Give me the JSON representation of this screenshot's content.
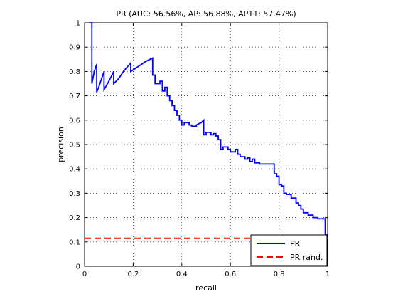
{
  "chart_data": {
    "type": "line",
    "title": "PR (AUC: 56.56%, AP: 56.88%, AP11: 57.47%)",
    "xlabel": "recall",
    "ylabel": "precision",
    "xlim": [
      0,
      1
    ],
    "ylim": [
      0,
      1
    ],
    "x_ticks": [
      "0",
      "0.2",
      "0.4",
      "0.6",
      "0.8",
      "1"
    ],
    "y_ticks": [
      "0",
      "0.1",
      "0.2",
      "0.3",
      "0.4",
      "0.5",
      "0.6",
      "0.7",
      "0.8",
      "0.9",
      "1"
    ],
    "grid": true,
    "legend_position": "bottom-right",
    "series": [
      {
        "name": "PR",
        "color": "#0000ff",
        "style": "solid",
        "step": true,
        "points": [
          [
            0.02,
            1.0
          ],
          [
            0.03,
            1.0
          ],
          [
            0.03,
            0.75
          ],
          [
            0.04,
            0.8
          ],
          [
            0.05,
            0.83
          ],
          [
            0.05,
            0.715
          ],
          [
            0.06,
            0.74
          ],
          [
            0.07,
            0.77
          ],
          [
            0.08,
            0.8
          ],
          [
            0.08,
            0.725
          ],
          [
            0.1,
            0.76
          ],
          [
            0.12,
            0.8
          ],
          [
            0.12,
            0.75
          ],
          [
            0.14,
            0.77
          ],
          [
            0.16,
            0.8
          ],
          [
            0.19,
            0.835
          ],
          [
            0.19,
            0.8
          ],
          [
            0.22,
            0.82
          ],
          [
            0.25,
            0.84
          ],
          [
            0.28,
            0.855
          ],
          [
            0.28,
            0.785
          ],
          [
            0.29,
            0.785
          ],
          [
            0.29,
            0.75
          ],
          [
            0.31,
            0.75
          ],
          [
            0.31,
            0.76
          ],
          [
            0.32,
            0.76
          ],
          [
            0.32,
            0.72
          ],
          [
            0.33,
            0.72
          ],
          [
            0.33,
            0.735
          ],
          [
            0.34,
            0.735
          ],
          [
            0.34,
            0.7
          ],
          [
            0.35,
            0.7
          ],
          [
            0.35,
            0.68
          ],
          [
            0.36,
            0.68
          ],
          [
            0.36,
            0.66
          ],
          [
            0.37,
            0.66
          ],
          [
            0.37,
            0.64
          ],
          [
            0.38,
            0.64
          ],
          [
            0.38,
            0.62
          ],
          [
            0.39,
            0.62
          ],
          [
            0.39,
            0.6
          ],
          [
            0.4,
            0.6
          ],
          [
            0.4,
            0.58
          ],
          [
            0.41,
            0.58
          ],
          [
            0.41,
            0.59
          ],
          [
            0.43,
            0.59
          ],
          [
            0.43,
            0.58
          ],
          [
            0.44,
            0.58
          ],
          [
            0.44,
            0.575
          ],
          [
            0.46,
            0.575
          ],
          [
            0.46,
            0.58
          ],
          [
            0.48,
            0.59
          ],
          [
            0.49,
            0.6
          ],
          [
            0.49,
            0.54
          ],
          [
            0.5,
            0.54
          ],
          [
            0.5,
            0.55
          ],
          [
            0.52,
            0.55
          ],
          [
            0.52,
            0.54
          ],
          [
            0.53,
            0.54
          ],
          [
            0.53,
            0.545
          ],
          [
            0.54,
            0.545
          ],
          [
            0.54,
            0.535
          ],
          [
            0.55,
            0.535
          ],
          [
            0.55,
            0.52
          ],
          [
            0.56,
            0.52
          ],
          [
            0.56,
            0.48
          ],
          [
            0.57,
            0.48
          ],
          [
            0.57,
            0.49
          ],
          [
            0.59,
            0.49
          ],
          [
            0.59,
            0.48
          ],
          [
            0.6,
            0.48
          ],
          [
            0.6,
            0.47
          ],
          [
            0.62,
            0.47
          ],
          [
            0.62,
            0.48
          ],
          [
            0.63,
            0.48
          ],
          [
            0.63,
            0.46
          ],
          [
            0.64,
            0.46
          ],
          [
            0.64,
            0.45
          ],
          [
            0.66,
            0.45
          ],
          [
            0.66,
            0.44
          ],
          [
            0.67,
            0.44
          ],
          [
            0.67,
            0.445
          ],
          [
            0.68,
            0.445
          ],
          [
            0.68,
            0.43
          ],
          [
            0.69,
            0.43
          ],
          [
            0.69,
            0.44
          ],
          [
            0.7,
            0.44
          ],
          [
            0.7,
            0.425
          ],
          [
            0.72,
            0.425
          ],
          [
            0.72,
            0.42
          ],
          [
            0.78,
            0.42
          ],
          [
            0.78,
            0.38
          ],
          [
            0.79,
            0.38
          ],
          [
            0.79,
            0.37
          ],
          [
            0.8,
            0.37
          ],
          [
            0.8,
            0.335
          ],
          [
            0.81,
            0.335
          ],
          [
            0.81,
            0.33
          ],
          [
            0.82,
            0.33
          ],
          [
            0.82,
            0.3
          ],
          [
            0.83,
            0.3
          ],
          [
            0.83,
            0.295
          ],
          [
            0.85,
            0.295
          ],
          [
            0.85,
            0.28
          ],
          [
            0.87,
            0.28
          ],
          [
            0.87,
            0.26
          ],
          [
            0.88,
            0.26
          ],
          [
            0.88,
            0.25
          ],
          [
            0.89,
            0.25
          ],
          [
            0.89,
            0.235
          ],
          [
            0.9,
            0.235
          ],
          [
            0.9,
            0.22
          ],
          [
            0.92,
            0.22
          ],
          [
            0.92,
            0.21
          ],
          [
            0.94,
            0.21
          ],
          [
            0.94,
            0.2
          ],
          [
            0.96,
            0.2
          ],
          [
            0.96,
            0.195
          ],
          [
            0.99,
            0.195
          ],
          [
            0.99,
            0.13
          ],
          [
            1.0,
            0.13
          ]
        ]
      },
      {
        "name": "PR rand.",
        "color": "#ff0000",
        "style": "dashed",
        "step": false,
        "points": [
          [
            0,
            0.115
          ],
          [
            1,
            0.115
          ]
        ]
      }
    ]
  }
}
